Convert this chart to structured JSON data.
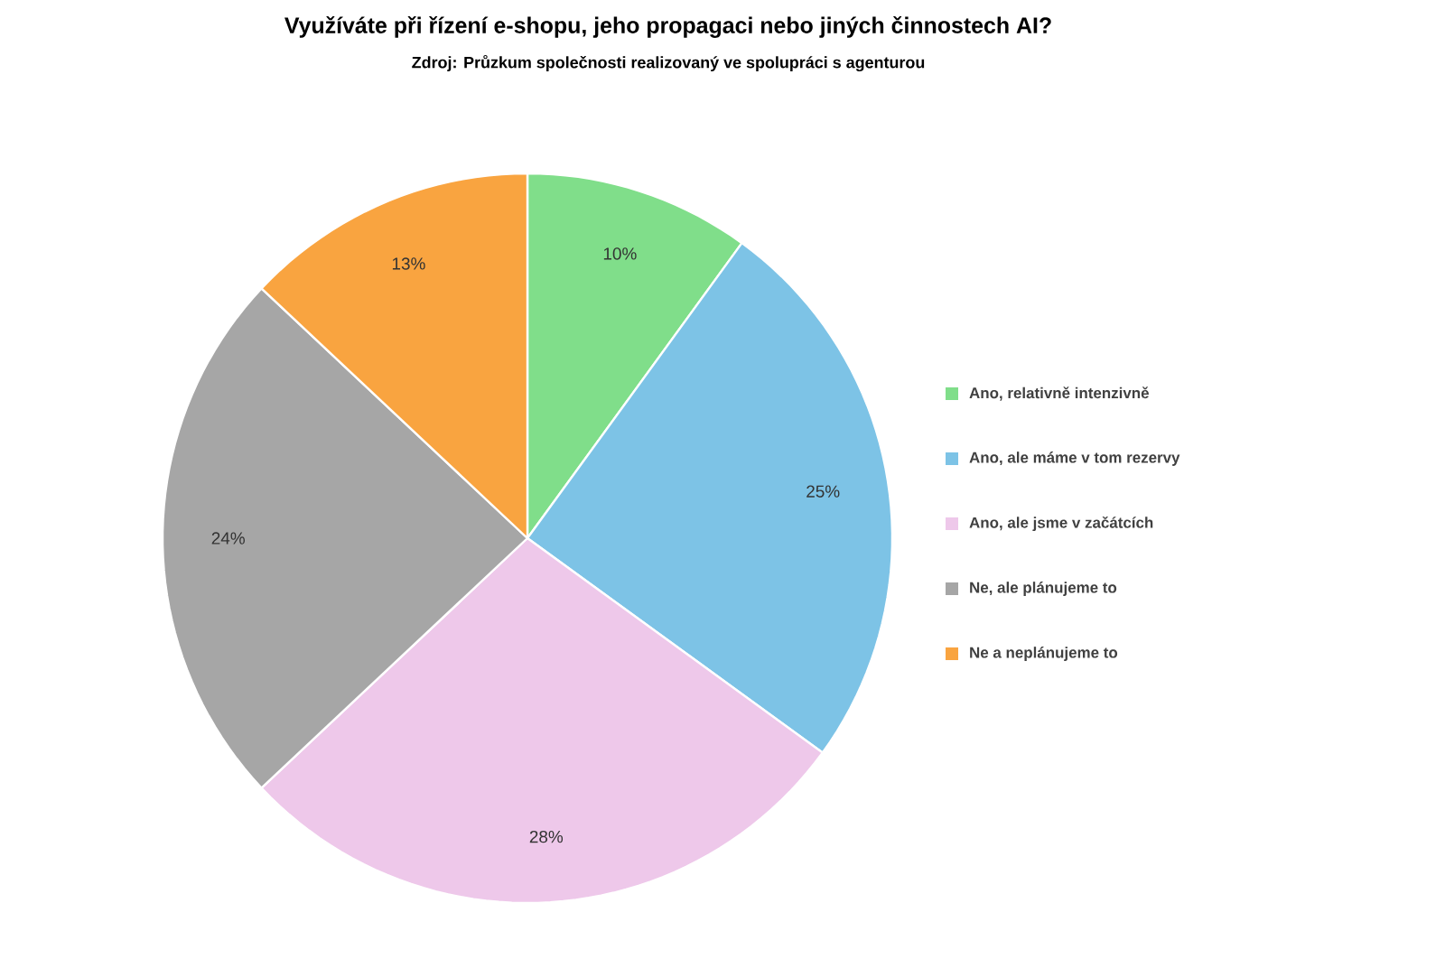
{
  "chart_data": {
    "type": "pie",
    "title": "Využíváte při řízení e-shopu, jeho propagaci nebo jiných činnostech AI?",
    "subtitle": "Zdroj: Průzkum společnosti realizovaný ve spolupráci s agenturou",
    "categories": [
      "Ano, relativně intenzivně",
      "Ano, ale máme v tom rezervy",
      "Ano, ale jsme v začátcích",
      "Ne, ale plánujeme to",
      "Ne a neplánujeme to"
    ],
    "values": [
      10,
      25,
      28,
      24,
      13
    ],
    "value_labels": [
      "10%",
      "25%",
      "28%",
      "24%",
      "13%"
    ],
    "colors": [
      "#80de8a",
      "#7dc3e6",
      "#eec8ea",
      "#a6a6a6",
      "#f9a440"
    ],
    "legend": "right"
  }
}
